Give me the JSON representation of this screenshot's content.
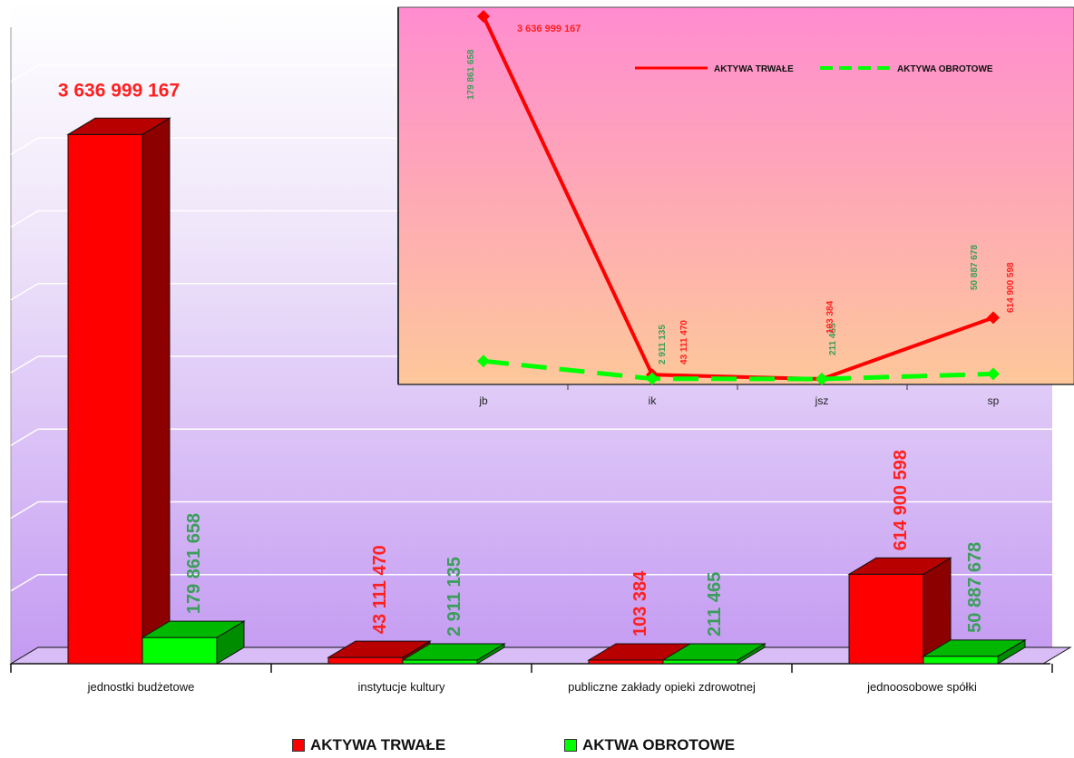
{
  "colors": {
    "trwale": "#ff0000",
    "obrotowe": "#00ff00",
    "trwale_label": "#ff2020",
    "obrotowe_label": "#3a9e5a"
  },
  "chart_data": [
    {
      "type": "bar",
      "categories": [
        "jednostki budżetowe",
        "instytucje kultury",
        "publiczne zakłady opieki zdrowotnej",
        "jednoosobowe spółki"
      ],
      "series": [
        {
          "name": "AKTYWA TRWAŁE",
          "values": [
            3636999167,
            43111470,
            103384,
            614900598
          ],
          "labels": [
            "3 636 999 167",
            "43 111 470",
            "103 384",
            "614 900 598"
          ]
        },
        {
          "name": "AKTWA OBROTOWE",
          "values": [
            179861658,
            2911135,
            211465,
            50887678
          ],
          "labels": [
            "179 861 658",
            "2 911 135",
            "211 465",
            "50 887 678"
          ]
        }
      ],
      "ylim": [
        0,
        4000000000
      ],
      "grid": true,
      "legend": "bottom"
    },
    {
      "type": "line",
      "categories": [
        "jb",
        "ik",
        "jsz",
        "sp"
      ],
      "series": [
        {
          "name": "AKTYWA TRWAŁE",
          "values": [
            3636999167,
            43111470,
            103384,
            614900598
          ],
          "labels": [
            "3 636 999 167",
            "43 111 470",
            "103 384",
            "614 900 598"
          ]
        },
        {
          "name": "AKTYWA OBROTOWE",
          "values": [
            179861658,
            2911135,
            211465,
            50887678
          ],
          "labels": [
            "179 861 658",
            "2 911 135",
            "211 465",
            "50 887 678"
          ]
        }
      ],
      "legend": "top-right"
    }
  ]
}
